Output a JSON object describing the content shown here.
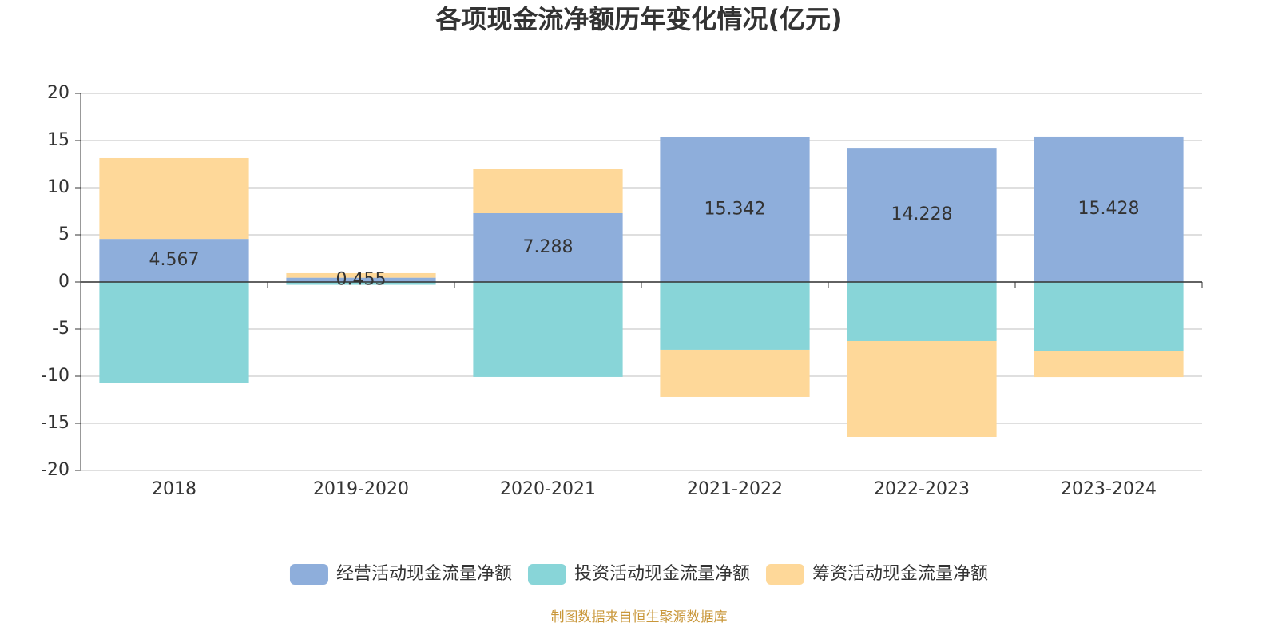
{
  "chart_data": {
    "type": "bar",
    "stacked": true,
    "title": "各项现金流净额历年变化情况(亿元)",
    "categories": [
      "2018",
      "2019-2020",
      "2020-2021",
      "2021-2022",
      "2022-2023",
      "2023-2024"
    ],
    "series": [
      {
        "name": "经营活动现金流量净额",
        "color": "#8eaedb",
        "values": [
          4.567,
          0.455,
          7.288,
          15.342,
          14.228,
          15.428
        ],
        "show_labels": true
      },
      {
        "name": "投资活动现金流量净额",
        "color": "#88d5d8",
        "values": [
          -10.76,
          -0.3,
          -10.08,
          -7.2,
          -6.27,
          -7.29
        ]
      },
      {
        "name": "筹资活动现金流量净额",
        "color": "#fed899",
        "values": [
          8.57,
          0.48,
          4.66,
          -5.0,
          -10.17,
          -2.8
        ]
      }
    ],
    "ylim": [
      -20,
      20
    ],
    "yticks": [
      -20,
      -15,
      -10,
      -5,
      0,
      5,
      10,
      15,
      20
    ],
    "grid": true,
    "legend": "bottom",
    "source": "制图数据来自恒生聚源数据库"
  }
}
